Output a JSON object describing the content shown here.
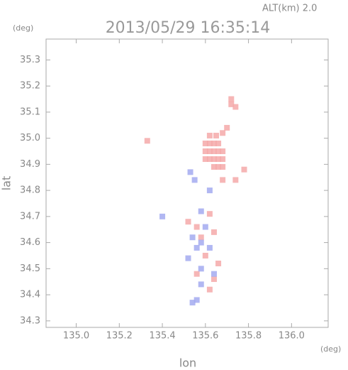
{
  "chart_data": {
    "type": "scatter",
    "annotation": "ALT(km) 2.0",
    "y_unit": "(deg)",
    "title": "2013/05/29 16:35:14",
    "ylabel": "lat",
    "xlabel": "lon",
    "x_unit": "(deg)",
    "xlim": [
      134.86,
      136.17
    ],
    "ylim": [
      34.275,
      35.38
    ],
    "xticks": [
      {
        "value": 135,
        "label": "135.0"
      },
      135.2,
      135.4,
      135.6,
      135.8,
      {
        "value": 136,
        "label": "136.0"
      }
    ],
    "yticks": [
      34.3,
      34.4,
      34.5,
      34.6,
      34.7,
      34.8,
      34.9,
      {
        "value": 35,
        "label": "35.0"
      },
      35.1,
      35.2,
      35.3
    ],
    "series": [
      {
        "color": "#f4a9a9",
        "x": [
          135.6,
          135.62,
          135.64,
          135.66,
          135.6,
          135.62,
          135.64,
          135.66,
          135.68,
          135.6,
          135.62,
          135.64,
          135.66,
          135.68,
          135.64,
          135.66,
          135.68,
          135.62,
          135.65,
          135.68,
          135.7,
          135.72,
          135.74,
          135.72,
          135.33,
          135.62,
          135.64,
          135.58,
          135.52,
          135.6,
          135.56,
          135.64,
          135.62,
          135.68,
          135.74,
          135.78,
          135.56,
          135.66
        ],
        "y": [
          34.98,
          34.98,
          34.98,
          34.98,
          34.95,
          34.95,
          34.95,
          34.95,
          34.95,
          34.92,
          34.92,
          34.92,
          34.92,
          34.92,
          34.89,
          34.89,
          34.89,
          35.01,
          35.01,
          35.02,
          35.04,
          35.13,
          35.12,
          35.15,
          34.99,
          34.71,
          34.64,
          34.62,
          34.68,
          34.55,
          34.48,
          34.46,
          34.42,
          34.84,
          34.84,
          34.88,
          34.66,
          34.52
        ]
      },
      {
        "color": "#a3aaf0",
        "x": [
          135.53,
          135.55,
          135.4,
          135.58,
          135.54,
          135.6,
          135.56,
          135.52,
          135.58,
          135.62,
          135.64,
          135.58,
          135.56,
          135.54,
          135.62,
          135.58
        ],
        "y": [
          34.87,
          34.84,
          34.7,
          34.72,
          34.62,
          34.66,
          34.58,
          34.54,
          34.5,
          34.58,
          34.48,
          34.44,
          34.38,
          34.37,
          34.8,
          34.6
        ]
      }
    ]
  }
}
